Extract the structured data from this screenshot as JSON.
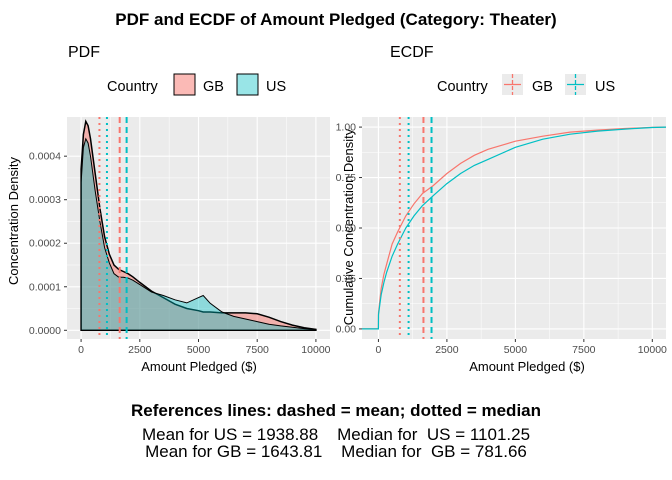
{
  "figure": {
    "title": "PDF and ECDF of Amount Pledged (Category: Theater)",
    "footer": {
      "caption": "References lines: dashed = mean; dotted = median",
      "line1": "Mean for US = 1938.88    Median for  US = 1101.25",
      "line2": "Mean for GB = 1643.81    Median for  GB = 781.66"
    },
    "colors": {
      "GB": "#F8766D",
      "US": "#00BFC4",
      "panel": "#EBEBEB",
      "grid": "#FFFFFF"
    }
  },
  "chart_data": [
    {
      "type": "area",
      "panel_title": "PDF",
      "xlabel": "Amount Pledged ($)",
      "ylabel": "Concentration Density",
      "xlim": [
        -600,
        10600
      ],
      "ylim": [
        -2e-05,
        0.00049
      ],
      "x_ticks": [
        0,
        2500,
        5000,
        7500,
        10000
      ],
      "x_tick_labels": [
        "0",
        "2500",
        "5000",
        "7500",
        "10000"
      ],
      "y_ticks": [
        0,
        0.0001,
        0.0002,
        0.0003,
        0.0004
      ],
      "y_tick_labels": [
        "0.0000",
        "0.0001",
        "0.0002",
        "0.0003",
        "0.0004"
      ],
      "grid": true,
      "legend": {
        "title": "Country",
        "position": "top",
        "entries": [
          "GB",
          "US"
        ]
      },
      "x": [
        0,
        100,
        200,
        300,
        400,
        600,
        800,
        1000,
        1200,
        1400,
        1600,
        1800,
        2000,
        2200,
        2500,
        3000,
        3500,
        4000,
        4500,
        5000,
        5200,
        5500,
        6000,
        6500,
        7000,
        7500,
        8000,
        8500,
        9000,
        9500,
        10000
      ],
      "series": [
        {
          "name": "GB",
          "values": [
            0.00037,
            0.00045,
            0.00048,
            0.00047,
            0.00044,
            0.00036,
            0.00028,
            0.000215,
            0.000175,
            0.00015,
            0.00014,
            0.000135,
            0.00013,
            0.000123,
            0.00011,
            9e-05,
            7.5e-05,
            6e-05,
            5e-05,
            4.5e-05,
            4.2e-05,
            4.2e-05,
            4e-05,
            4e-05,
            4e-05,
            3.8e-05,
            3e-05,
            2e-05,
            1.2e-05,
            6e-06,
            2e-06
          ]
        },
        {
          "name": "US",
          "values": [
            0.00034,
            0.00042,
            0.00044,
            0.00043,
            0.0004,
            0.00032,
            0.00025,
            0.00019,
            0.000155,
            0.00013,
            0.000122,
            0.000122,
            0.00012,
            0.000115,
            0.000105,
            8.8e-05,
            8e-05,
            7e-05,
            6.3e-05,
            7.5e-05,
            8e-05,
            6.2e-05,
            4.2e-05,
            3.2e-05,
            2.6e-05,
            2e-05,
            1.4e-05,
            1e-05,
            7e-06,
            4e-06,
            2e-06
          ]
        }
      ],
      "reference_lines": [
        {
          "country": "GB",
          "kind": "mean",
          "style": "dashed",
          "value": 1643.81
        },
        {
          "country": "US",
          "kind": "mean",
          "style": "dashed",
          "value": 1938.88
        },
        {
          "country": "GB",
          "kind": "median",
          "style": "dotted",
          "value": 781.66
        },
        {
          "country": "US",
          "kind": "median",
          "style": "dotted",
          "value": 1101.25
        }
      ]
    },
    {
      "type": "line",
      "panel_title": "ECDF",
      "xlabel": "Amount Pledged ($)",
      "ylabel": "Cumulative Concentration Density",
      "xlim": [
        -600,
        10500
      ],
      "ylim": [
        -0.05,
        1.05
      ],
      "x_ticks": [
        0,
        2500,
        5000,
        7500,
        10000
      ],
      "x_tick_labels": [
        "0",
        "2500",
        "5000",
        "7500",
        "10000"
      ],
      "y_ticks": [
        0,
        0.25,
        0.5,
        0.75,
        1.0
      ],
      "y_tick_labels": [
        "0.00",
        "0.25",
        "0.50",
        "0.75",
        "1.00"
      ],
      "grid": true,
      "legend": {
        "title": "Country",
        "position": "top",
        "entries": [
          "GB",
          "US"
        ]
      },
      "x": [
        -600,
        0,
        1,
        50,
        100,
        200,
        300,
        500,
        700,
        1000,
        1300,
        1600,
        2000,
        2500,
        3000,
        3500,
        4000,
        5000,
        6000,
        7000,
        8000,
        9000,
        10000,
        10500
      ],
      "series": [
        {
          "name": "GB",
          "values": [
            0,
            0,
            0.08,
            0.14,
            0.2,
            0.27,
            0.32,
            0.42,
            0.48,
            0.56,
            0.62,
            0.67,
            0.71,
            0.77,
            0.82,
            0.86,
            0.89,
            0.93,
            0.955,
            0.975,
            0.985,
            0.993,
            0.999,
            1.0
          ]
        },
        {
          "name": "US",
          "values": [
            0,
            0,
            0.07,
            0.12,
            0.17,
            0.23,
            0.28,
            0.36,
            0.42,
            0.5,
            0.56,
            0.61,
            0.66,
            0.72,
            0.77,
            0.81,
            0.84,
            0.9,
            0.94,
            0.965,
            0.98,
            0.99,
            0.998,
            1.0
          ]
        }
      ],
      "reference_lines": [
        {
          "country": "GB",
          "kind": "mean",
          "style": "dashed",
          "value": 1643.81
        },
        {
          "country": "US",
          "kind": "mean",
          "style": "dashed",
          "value": 1938.88
        },
        {
          "country": "GB",
          "kind": "median",
          "style": "dotted",
          "value": 781.66
        },
        {
          "country": "US",
          "kind": "median",
          "style": "dotted",
          "value": 1101.25
        }
      ]
    }
  ]
}
